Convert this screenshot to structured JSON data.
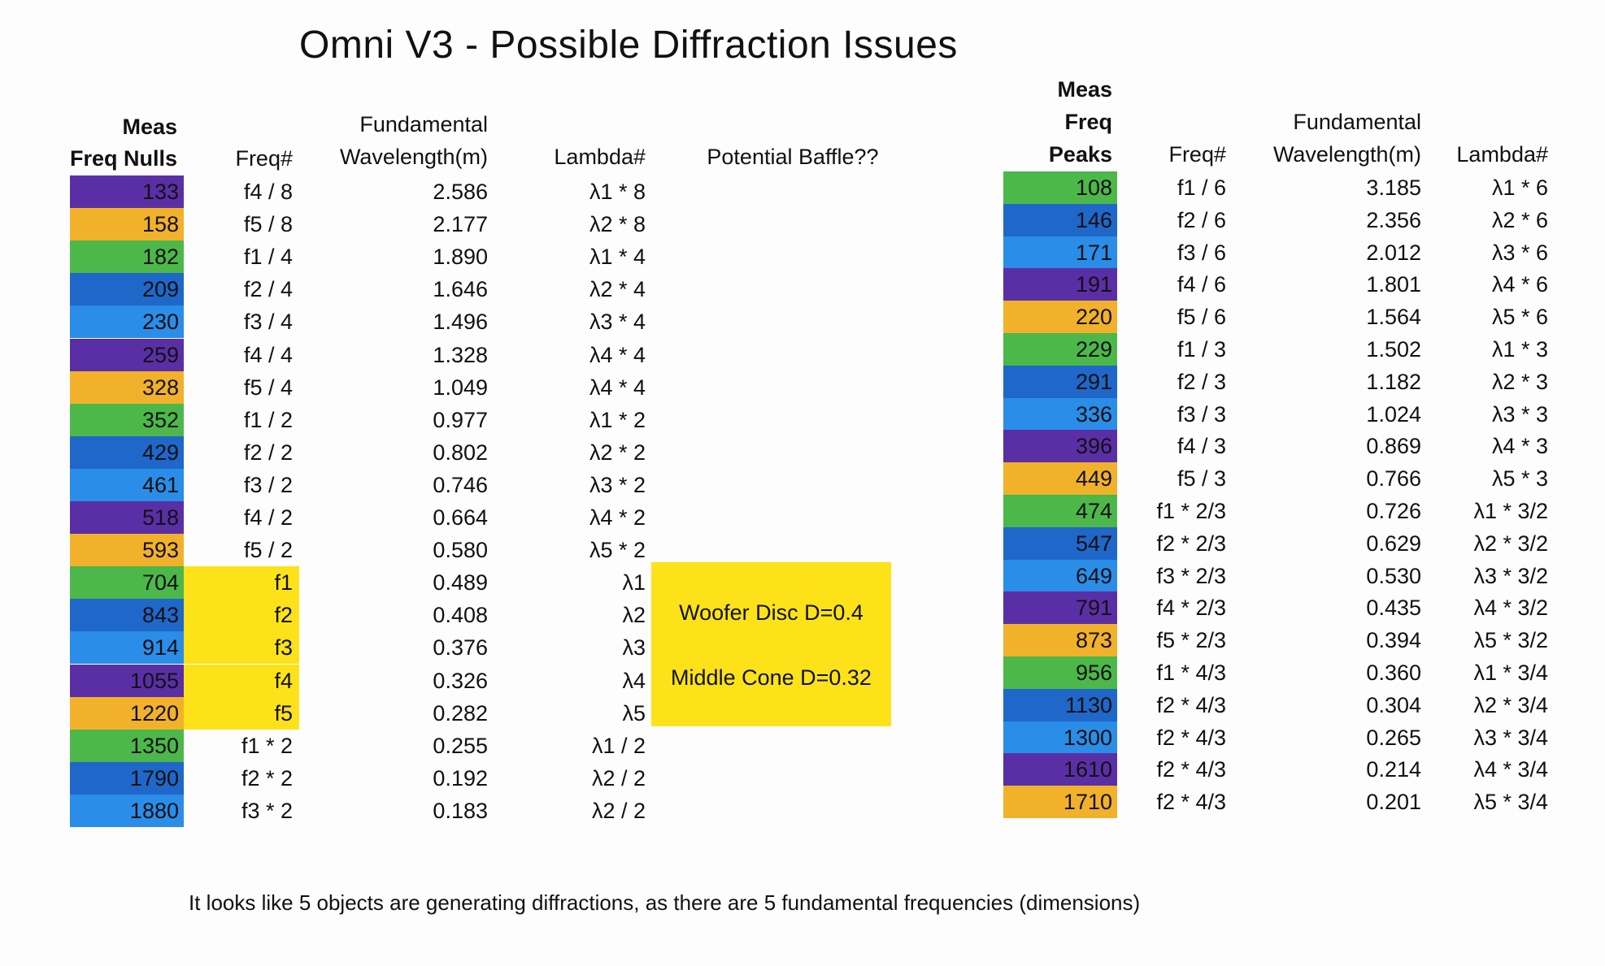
{
  "title": "Omni V3 - Possible Diffraction Issues",
  "colors": {
    "f1": "#4cb84a",
    "f2": "#1f67c9",
    "f3": "#2a8de8",
    "f4": "#5a2fa6",
    "f5": "#f2b12a",
    "fundamental_highlight": "#fde21a"
  },
  "left_table": {
    "headers": {
      "meas_line1": "Meas",
      "meas_line2": "Freq Nulls",
      "freq": "Freq#",
      "wave_line1": "Fundamental",
      "wave_line2": "Wavelength(m)",
      "lambda": "Lambda#",
      "baffle": "Potential Baffle??"
    },
    "rows": [
      {
        "meas": "133",
        "freq": "f4 / 8",
        "wave": "2.586",
        "lambda": "λ1 * 8",
        "color": "f4"
      },
      {
        "meas": "158",
        "freq": "f5 / 8",
        "wave": "2.177",
        "lambda": "λ2 * 8",
        "color": "f5"
      },
      {
        "meas": "182",
        "freq": "f1 / 4",
        "wave": "1.890",
        "lambda": "λ1 * 4",
        "color": "f1"
      },
      {
        "meas": "209",
        "freq": "f2 / 4",
        "wave": "1.646",
        "lambda": "λ2 * 4",
        "color": "f2"
      },
      {
        "meas": "230",
        "freq": "f3 / 4",
        "wave": "1.496",
        "lambda": "λ3 * 4",
        "color": "f3"
      },
      {
        "meas": "259",
        "freq": "f4 / 4",
        "wave": "1.328",
        "lambda": "λ4 * 4",
        "color": "f4"
      },
      {
        "meas": "328",
        "freq": "f5 / 4",
        "wave": "1.049",
        "lambda": "λ4 * 4",
        "color": "f5"
      },
      {
        "meas": "352",
        "freq": "f1 / 2",
        "wave": "0.977",
        "lambda": "λ1 * 2",
        "color": "f1"
      },
      {
        "meas": "429",
        "freq": "f2 / 2",
        "wave": "0.802",
        "lambda": "λ2 * 2",
        "color": "f2"
      },
      {
        "meas": "461",
        "freq": "f3 / 2",
        "wave": "0.746",
        "lambda": "λ3 * 2",
        "color": "f3"
      },
      {
        "meas": "518",
        "freq": "f4 / 2",
        "wave": "0.664",
        "lambda": "λ4 * 2",
        "color": "f4"
      },
      {
        "meas": "593",
        "freq": "f5 / 2",
        "wave": "0.580",
        "lambda": "λ5 * 2",
        "color": "f5"
      },
      {
        "meas": "704",
        "freq": "f1",
        "wave": "0.489",
        "lambda": "λ1",
        "color": "f1",
        "fundamental": true
      },
      {
        "meas": "843",
        "freq": "f2",
        "wave": "0.408",
        "lambda": "λ2",
        "color": "f2",
        "fundamental": true
      },
      {
        "meas": "914",
        "freq": "f3",
        "wave": "0.376",
        "lambda": "λ3",
        "color": "f3",
        "fundamental": true
      },
      {
        "meas": "1055",
        "freq": "f4",
        "wave": "0.326",
        "lambda": "λ4",
        "color": "f4",
        "fundamental": true
      },
      {
        "meas": "1220",
        "freq": "f5",
        "wave": "0.282",
        "lambda": "λ5",
        "color": "f5",
        "fundamental": true
      },
      {
        "meas": "1350",
        "freq": "f1 * 2",
        "wave": "0.255",
        "lambda": "λ1 / 2",
        "color": "f1"
      },
      {
        "meas": "1790",
        "freq": "f2 * 2",
        "wave": "0.192",
        "lambda": "λ2 / 2",
        "color": "f2"
      },
      {
        "meas": "1880",
        "freq": "f3 * 2",
        "wave": "0.183",
        "lambda": "λ2 / 2",
        "color": "f3"
      }
    ],
    "baffle_notes": [
      "Woofer Disc D=0.4",
      "Middle Cone D=0.32"
    ]
  },
  "right_table": {
    "headers": {
      "meas_line1": "Meas",
      "meas_line2": "Freq",
      "meas_line3": "Peaks",
      "freq": "Freq#",
      "wave_line1": "Fundamental",
      "wave_line2": "Wavelength(m)",
      "lambda": "Lambda#"
    },
    "rows": [
      {
        "meas": "108",
        "freq": "f1 / 6",
        "wave": "3.185",
        "lambda": "λ1 * 6",
        "color": "f1"
      },
      {
        "meas": "146",
        "freq": "f2 / 6",
        "wave": "2.356",
        "lambda": "λ2 * 6",
        "color": "f2"
      },
      {
        "meas": "171",
        "freq": "f3 / 6",
        "wave": "2.012",
        "lambda": "λ3 * 6",
        "color": "f3"
      },
      {
        "meas": "191",
        "freq": "f4 / 6",
        "wave": "1.801",
        "lambda": "λ4 * 6",
        "color": "f4"
      },
      {
        "meas": "220",
        "freq": "f5 / 6",
        "wave": "1.564",
        "lambda": "λ5 * 6",
        "color": "f5"
      },
      {
        "meas": "229",
        "freq": "f1 / 3",
        "wave": "1.502",
        "lambda": "λ1 * 3",
        "color": "f1"
      },
      {
        "meas": "291",
        "freq": "f2 / 3",
        "wave": "1.182",
        "lambda": "λ2 * 3",
        "color": "f2"
      },
      {
        "meas": "336",
        "freq": "f3 / 3",
        "wave": "1.024",
        "lambda": "λ3 * 3",
        "color": "f3"
      },
      {
        "meas": "396",
        "freq": "f4 / 3",
        "wave": "0.869",
        "lambda": "λ4 * 3",
        "color": "f4"
      },
      {
        "meas": "449",
        "freq": "f5 / 3",
        "wave": "0.766",
        "lambda": "λ5 * 3",
        "color": "f5"
      },
      {
        "meas": "474",
        "freq": "f1 * 2/3",
        "wave": "0.726",
        "lambda": "λ1 * 3/2",
        "color": "f1"
      },
      {
        "meas": "547",
        "freq": "f2 * 2/3",
        "wave": "0.629",
        "lambda": "λ2 * 3/2",
        "color": "f2"
      },
      {
        "meas": "649",
        "freq": "f3 * 2/3",
        "wave": "0.530",
        "lambda": "λ3 * 3/2",
        "color": "f3"
      },
      {
        "meas": "791",
        "freq": "f4 * 2/3",
        "wave": "0.435",
        "lambda": "λ4 * 3/2",
        "color": "f4"
      },
      {
        "meas": "873",
        "freq": "f5 * 2/3",
        "wave": "0.394",
        "lambda": "λ5 * 3/2",
        "color": "f5"
      },
      {
        "meas": "956",
        "freq": "f1 * 4/3",
        "wave": "0.360",
        "lambda": "λ1 * 3/4",
        "color": "f1"
      },
      {
        "meas": "1130",
        "freq": "f2 * 4/3",
        "wave": "0.304",
        "lambda": "λ2 * 3/4",
        "color": "f2"
      },
      {
        "meas": "1300",
        "freq": "f2 * 4/3",
        "wave": "0.265",
        "lambda": "λ3 * 3/4",
        "color": "f3"
      },
      {
        "meas": "1610",
        "freq": "f2 * 4/3",
        "wave": "0.214",
        "lambda": "λ4 * 3/4",
        "color": "f4"
      },
      {
        "meas": "1710",
        "freq": "f2 * 4/3",
        "wave": "0.201",
        "lambda": "λ5 * 3/4",
        "color": "f5"
      }
    ]
  },
  "footer": "It looks like 5 objects are generating diffractions, as there are 5 fundamental frequencies (dimensions)"
}
